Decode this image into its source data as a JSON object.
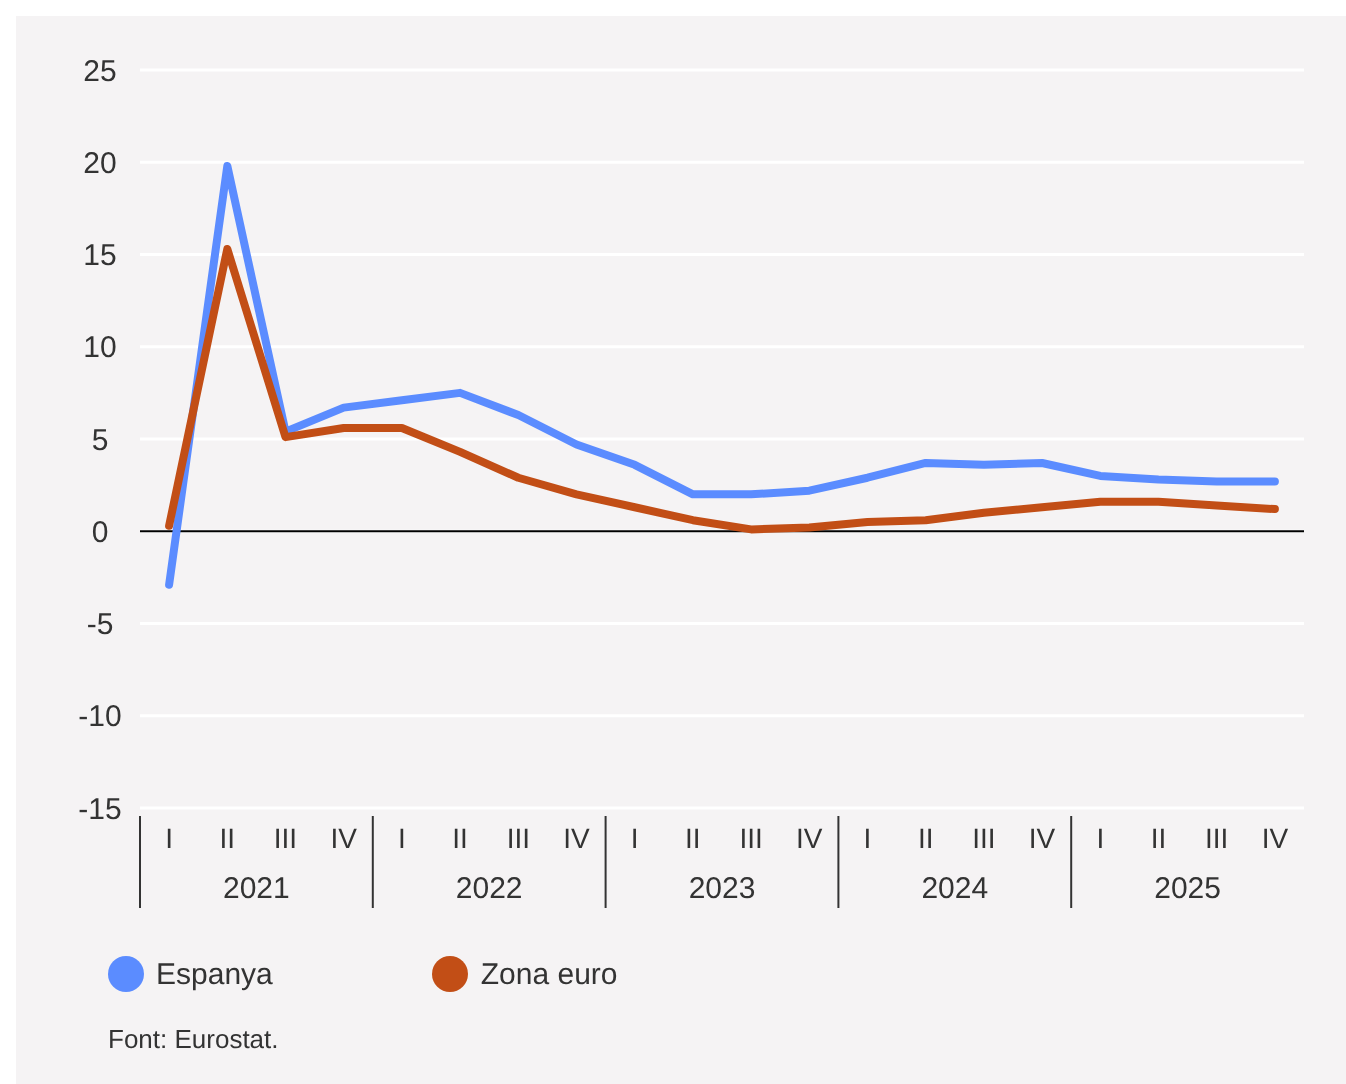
{
  "chart_data": {
    "type": "line",
    "categories": [
      "I",
      "II",
      "III",
      "IV",
      "I",
      "II",
      "III",
      "IV",
      "I",
      "II",
      "III",
      "IV",
      "I",
      "II",
      "III",
      "IV",
      "I",
      "II",
      "III",
      "IV"
    ],
    "series": [
      {
        "name": "Espanya",
        "color": "#5b8cff",
        "values": [
          -2.9,
          19.8,
          5.4,
          6.7,
          7.1,
          7.5,
          6.3,
          4.7,
          3.6,
          2.0,
          2.0,
          2.2,
          2.9,
          3.7,
          3.6,
          3.7,
          3.0,
          2.8,
          2.7,
          2.7
        ]
      },
      {
        "name": "Zona euro",
        "color": "#c24e16",
        "values": [
          0.3,
          15.3,
          5.1,
          5.6,
          5.6,
          4.3,
          2.9,
          2.0,
          1.3,
          0.6,
          0.1,
          0.2,
          0.5,
          0.6,
          1.0,
          1.3,
          1.6,
          1.6,
          1.4,
          1.2
        ]
      }
    ],
    "ylim": [
      -15,
      25
    ],
    "yticks": [
      -15,
      -10,
      -5,
      0,
      5,
      10,
      15,
      20,
      25
    ],
    "grid": "y",
    "legend": "bottom left",
    "marker": "none",
    "line_style": "solid",
    "ref_lines": [
      {
        "axis": "y",
        "value": 0,
        "color": "#000000"
      }
    ],
    "annotations": [
      "2021",
      "2022",
      "2023",
      "2024",
      "2025",
      "Font: Eurostat."
    ]
  }
}
